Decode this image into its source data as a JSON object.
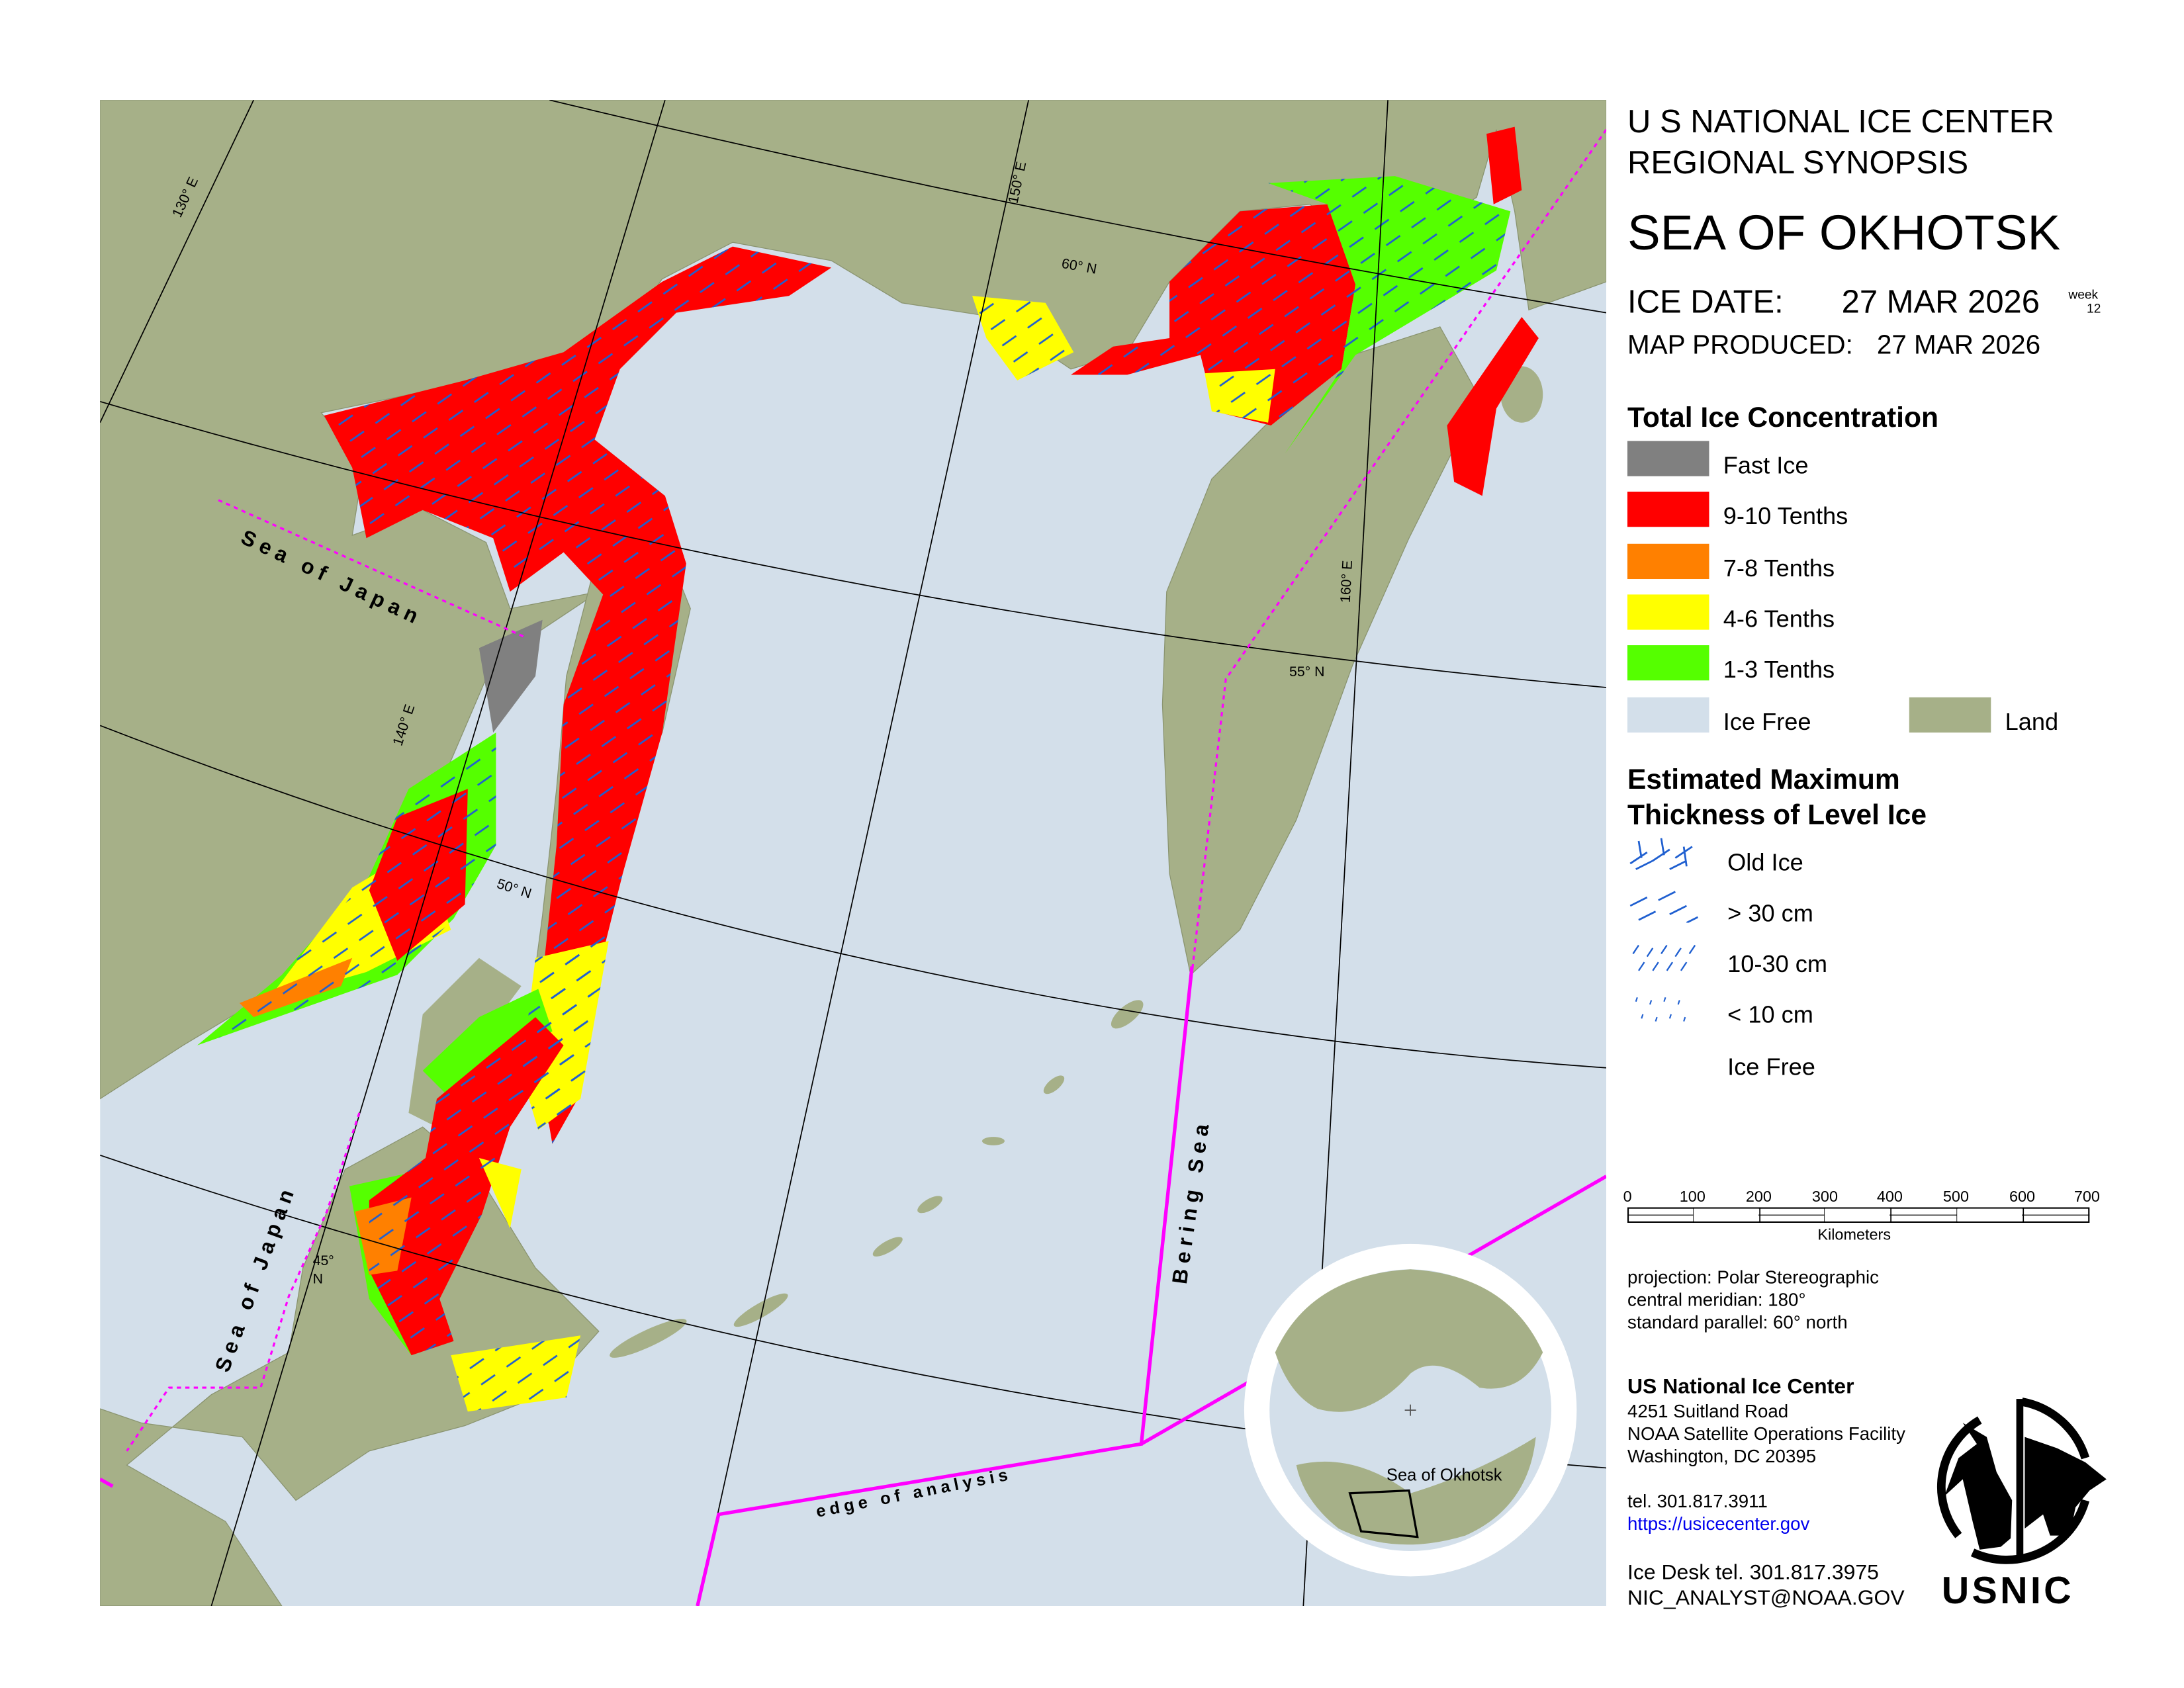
{
  "header": {
    "org_line1": "U S NATIONAL ICE CENTER",
    "org_line2": "REGIONAL SYNOPSIS",
    "region": "SEA OF OKHOTSK",
    "ice_date_label": "ICE DATE:",
    "ice_date": "27 MAR 2026",
    "week_label": "week",
    "week_number": "12",
    "map_produced_label": "MAP PRODUCED:",
    "map_produced": "27 MAR 2026"
  },
  "concentration_legend": {
    "title": "Total Ice Concentration",
    "items": [
      {
        "label": "Fast Ice",
        "color": "#808080"
      },
      {
        "label": "9-10 Tenths",
        "color": "#ff0000"
      },
      {
        "label": "7-8 Tenths",
        "color": "#ff8000"
      },
      {
        "label": "4-6 Tenths",
        "color": "#ffff00"
      },
      {
        "label": "1-3 Tenths",
        "color": "#55ff00"
      },
      {
        "label": "Ice Free",
        "color": "#d3dfea"
      },
      {
        "label": "Land",
        "color": "#a6b088"
      }
    ]
  },
  "thickness_legend": {
    "title_line1": "Estimated Maximum",
    "title_line2": "Thickness of Level Ice",
    "items": [
      {
        "label": "Old Ice",
        "icon": "crosshatch-icon"
      },
      {
        "label": "> 30 cm",
        "icon": "long-dash-icon"
      },
      {
        "label": "10-30 cm",
        "icon": "short-dash-icon"
      },
      {
        "label": "< 10 cm",
        "icon": "dot-dash-icon"
      },
      {
        "label": "Ice Free",
        "icon": "none"
      }
    ],
    "hatch_color": "#1f5fd0"
  },
  "scale_bar": {
    "ticks": [
      "0",
      "100",
      "200",
      "300",
      "400",
      "500",
      "600",
      "700"
    ],
    "unit": "Kilometers"
  },
  "projection": {
    "line1": "projection: Polar Stereographic",
    "line2": "central meridian: 180°",
    "line3": "standard parallel:  60° north"
  },
  "contact": {
    "name": "US National Ice Center",
    "address1": "4251 Suitland Road",
    "address2": "NOAA Satellite Operations Facility",
    "address3": "Washington, DC  20395",
    "tel": "tel. 301.817.3911",
    "url": "https://usicecenter.gov",
    "ice_desk": "Ice Desk tel. 301.817.3975",
    "email": "NIC_ANALYST@NOAA.GOV"
  },
  "logo": {
    "text": "USNIC"
  },
  "map": {
    "labels": {
      "sea_of_japan_north": "Sea of Japan",
      "sea_of_japan_south": "Sea of Japan",
      "bering_sea": "Bering Sea",
      "edge_of_analysis": "edge of analysis"
    },
    "graticule": {
      "lon_130": "130° E",
      "lon_140": "140° E",
      "lon_150": "150° E",
      "lon_160": "160° E",
      "lat_60": "60° N",
      "lat_55": "55° N",
      "lat_50": "50° N",
      "lat_45": "45°",
      "lat_45_n": "N"
    },
    "inset_label": "Sea of Okhotsk",
    "colors": {
      "water": "#d3dfea",
      "land": "#a6b088",
      "boundary": "#ff00ff"
    }
  }
}
